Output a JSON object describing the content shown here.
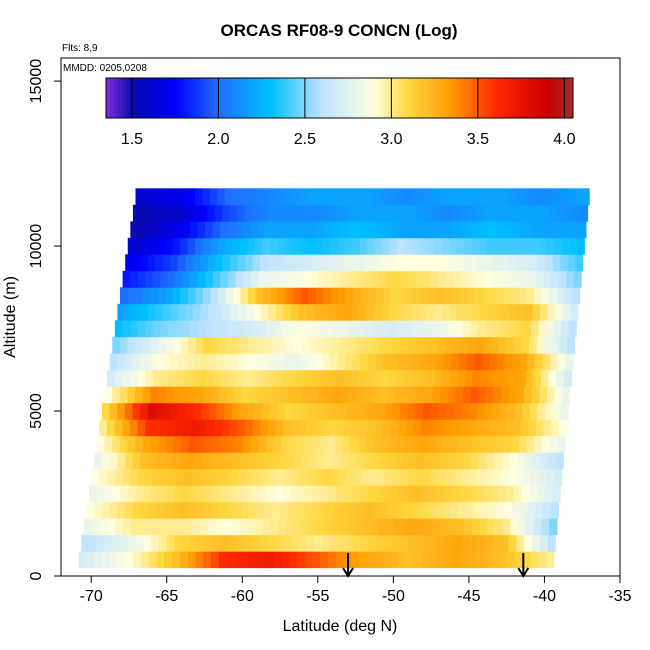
{
  "chart_data": {
    "type": "heatmap",
    "title": "ORCAS RF08-9 CONCN (Log)",
    "xlabel": "Latitude (deg N)",
    "ylabel": "Altitude (m)",
    "flights_note": "Flts: 8,9",
    "date_note": "MMDD: 0205,0208",
    "xlim": [
      -72,
      -35
    ],
    "ylim": [
      0,
      15700
    ],
    "x_ticks": [
      -70,
      -65,
      -60,
      -55,
      -50,
      -45,
      -40,
      -35
    ],
    "x_tick_labels": [
      "-70",
      "-65",
      "-60",
      "-55",
      "-50",
      "-45",
      "-40",
      "-35"
    ],
    "y_ticks": [
      0,
      5000,
      10000,
      15000
    ],
    "y_tick_labels": [
      "0",
      "5000",
      "10000",
      "15000"
    ],
    "colorbar": {
      "range": [
        1.35,
        4.05
      ],
      "ticks": [
        1.5,
        2.0,
        2.5,
        3.0,
        3.5,
        4.0
      ],
      "tick_labels": [
        "1.5",
        "2.0",
        "2.5",
        "3.0",
        "3.5",
        "4.0"
      ],
      "stops": [
        [
          1.35,
          "#8a2be2"
        ],
        [
          1.5,
          "#0b0bb0"
        ],
        [
          1.75,
          "#0000ff"
        ],
        [
          2.0,
          "#1e6fff"
        ],
        [
          2.3,
          "#00bfff"
        ],
        [
          2.6,
          "#bfe3ff"
        ],
        [
          2.9,
          "#ffffe0"
        ],
        [
          3.1,
          "#ffd740"
        ],
        [
          3.35,
          "#ff9a00"
        ],
        [
          3.6,
          "#ff2a00"
        ],
        [
          3.9,
          "#cc0000"
        ],
        [
          4.05,
          "#a52a2a"
        ]
      ]
    },
    "domain": {
      "bottom_lat_range": [
        -71,
        -39.5
      ],
      "top_lat_range": [
        -67,
        -37
      ],
      "top_altitude": 11700
    },
    "layers": [
      {
        "alt": 500,
        "values": [
          2.7,
          2.9,
          3.2,
          3.6,
          3.7,
          3.5,
          3.3,
          3.2,
          3.3,
          3.2,
          3.0
        ]
      },
      {
        "alt": 1000,
        "values": [
          2.6,
          2.8,
          3.1,
          3.2,
          3.1,
          3.0,
          3.1,
          3.2,
          3.3,
          3.2,
          2.6
        ]
      },
      {
        "alt": 1500,
        "values": [
          2.8,
          3.0,
          3.0,
          2.9,
          3.0,
          3.1,
          3.2,
          3.3,
          3.2,
          3.0,
          2.5
        ]
      },
      {
        "alt": 2000,
        "values": [
          2.9,
          3.1,
          3.2,
          3.1,
          3.0,
          3.1,
          3.2,
          3.1,
          3.0,
          2.9,
          2.6
        ]
      },
      {
        "alt": 2500,
        "values": [
          2.8,
          3.0,
          3.1,
          3.0,
          2.9,
          3.0,
          3.1,
          3.2,
          3.1,
          3.0,
          2.7
        ]
      },
      {
        "alt": 3000,
        "values": [
          2.9,
          3.1,
          3.2,
          3.1,
          3.0,
          3.1,
          3.0,
          3.1,
          3.0,
          2.9,
          2.7
        ]
      },
      {
        "alt": 3500,
        "values": [
          2.8,
          3.2,
          3.3,
          3.2,
          3.1,
          3.0,
          3.1,
          3.2,
          3.1,
          2.9,
          2.6
        ]
      },
      {
        "alt": 4000,
        "values": [
          2.9,
          3.3,
          3.5,
          3.4,
          3.1,
          3.0,
          3.2,
          3.3,
          3.2,
          3.1,
          2.8
        ]
      },
      {
        "alt": 4500,
        "values": [
          3.0,
          3.6,
          3.7,
          3.5,
          3.2,
          3.1,
          3.2,
          3.4,
          3.3,
          3.2,
          2.9
        ]
      },
      {
        "alt": 5000,
        "values": [
          3.1,
          3.8,
          3.6,
          3.3,
          3.1,
          3.2,
          3.3,
          3.5,
          3.4,
          3.2,
          2.8
        ]
      },
      {
        "alt": 5500,
        "values": [
          2.9,
          3.4,
          3.3,
          3.1,
          3.2,
          3.3,
          3.2,
          3.3,
          3.5,
          3.3,
          2.8
        ]
      },
      {
        "alt": 6000,
        "values": [
          2.7,
          3.0,
          3.1,
          3.0,
          3.1,
          3.2,
          3.1,
          3.2,
          3.4,
          3.3,
          2.7
        ]
      },
      {
        "alt": 6500,
        "values": [
          2.6,
          2.9,
          3.0,
          2.9,
          2.8,
          3.0,
          3.2,
          3.3,
          3.5,
          3.3,
          2.8
        ]
      },
      {
        "alt": 7000,
        "values": [
          2.5,
          2.8,
          3.1,
          3.0,
          2.9,
          3.0,
          3.1,
          3.2,
          3.3,
          3.1,
          2.6
        ]
      },
      {
        "alt": 7500,
        "values": [
          2.3,
          2.5,
          2.6,
          2.7,
          2.9,
          2.8,
          2.7,
          2.8,
          3.0,
          3.1,
          2.6
        ]
      },
      {
        "alt": 8000,
        "values": [
          2.2,
          2.4,
          2.6,
          2.9,
          3.2,
          3.3,
          3.1,
          3.0,
          3.1,
          3.2,
          2.7
        ]
      },
      {
        "alt": 8500,
        "values": [
          2.0,
          2.2,
          2.6,
          3.2,
          3.5,
          3.3,
          3.1,
          3.2,
          3.1,
          3.0,
          2.6
        ]
      },
      {
        "alt": 9000,
        "values": [
          1.8,
          2.0,
          2.4,
          2.8,
          2.9,
          3.0,
          3.1,
          3.0,
          2.9,
          2.8,
          2.5
        ]
      },
      {
        "alt": 9500,
        "values": [
          1.7,
          1.9,
          2.3,
          2.6,
          2.7,
          2.8,
          2.9,
          2.9,
          2.8,
          2.7,
          2.4
        ]
      },
      {
        "alt": 10000,
        "values": [
          1.6,
          1.8,
          2.2,
          2.4,
          2.3,
          2.4,
          2.6,
          2.5,
          2.4,
          2.4,
          2.3
        ]
      },
      {
        "alt": 10500,
        "values": [
          1.5,
          1.7,
          2.0,
          2.2,
          2.2,
          2.3,
          2.2,
          2.2,
          2.3,
          2.2,
          2.2
        ]
      },
      {
        "alt": 11000,
        "values": [
          1.5,
          1.6,
          1.9,
          2.1,
          2.1,
          2.2,
          2.2,
          2.1,
          2.2,
          2.2,
          2.1
        ]
      },
      {
        "alt": 11500,
        "values": [
          1.6,
          1.7,
          2.0,
          2.1,
          2.2,
          2.2,
          2.1,
          2.2,
          2.2,
          2.1,
          2.2
        ]
      }
    ],
    "markers": [
      {
        "lat": -53,
        "alt": 450
      },
      {
        "lat": -41.4,
        "alt": 450
      }
    ],
    "legend_position": "top"
  }
}
